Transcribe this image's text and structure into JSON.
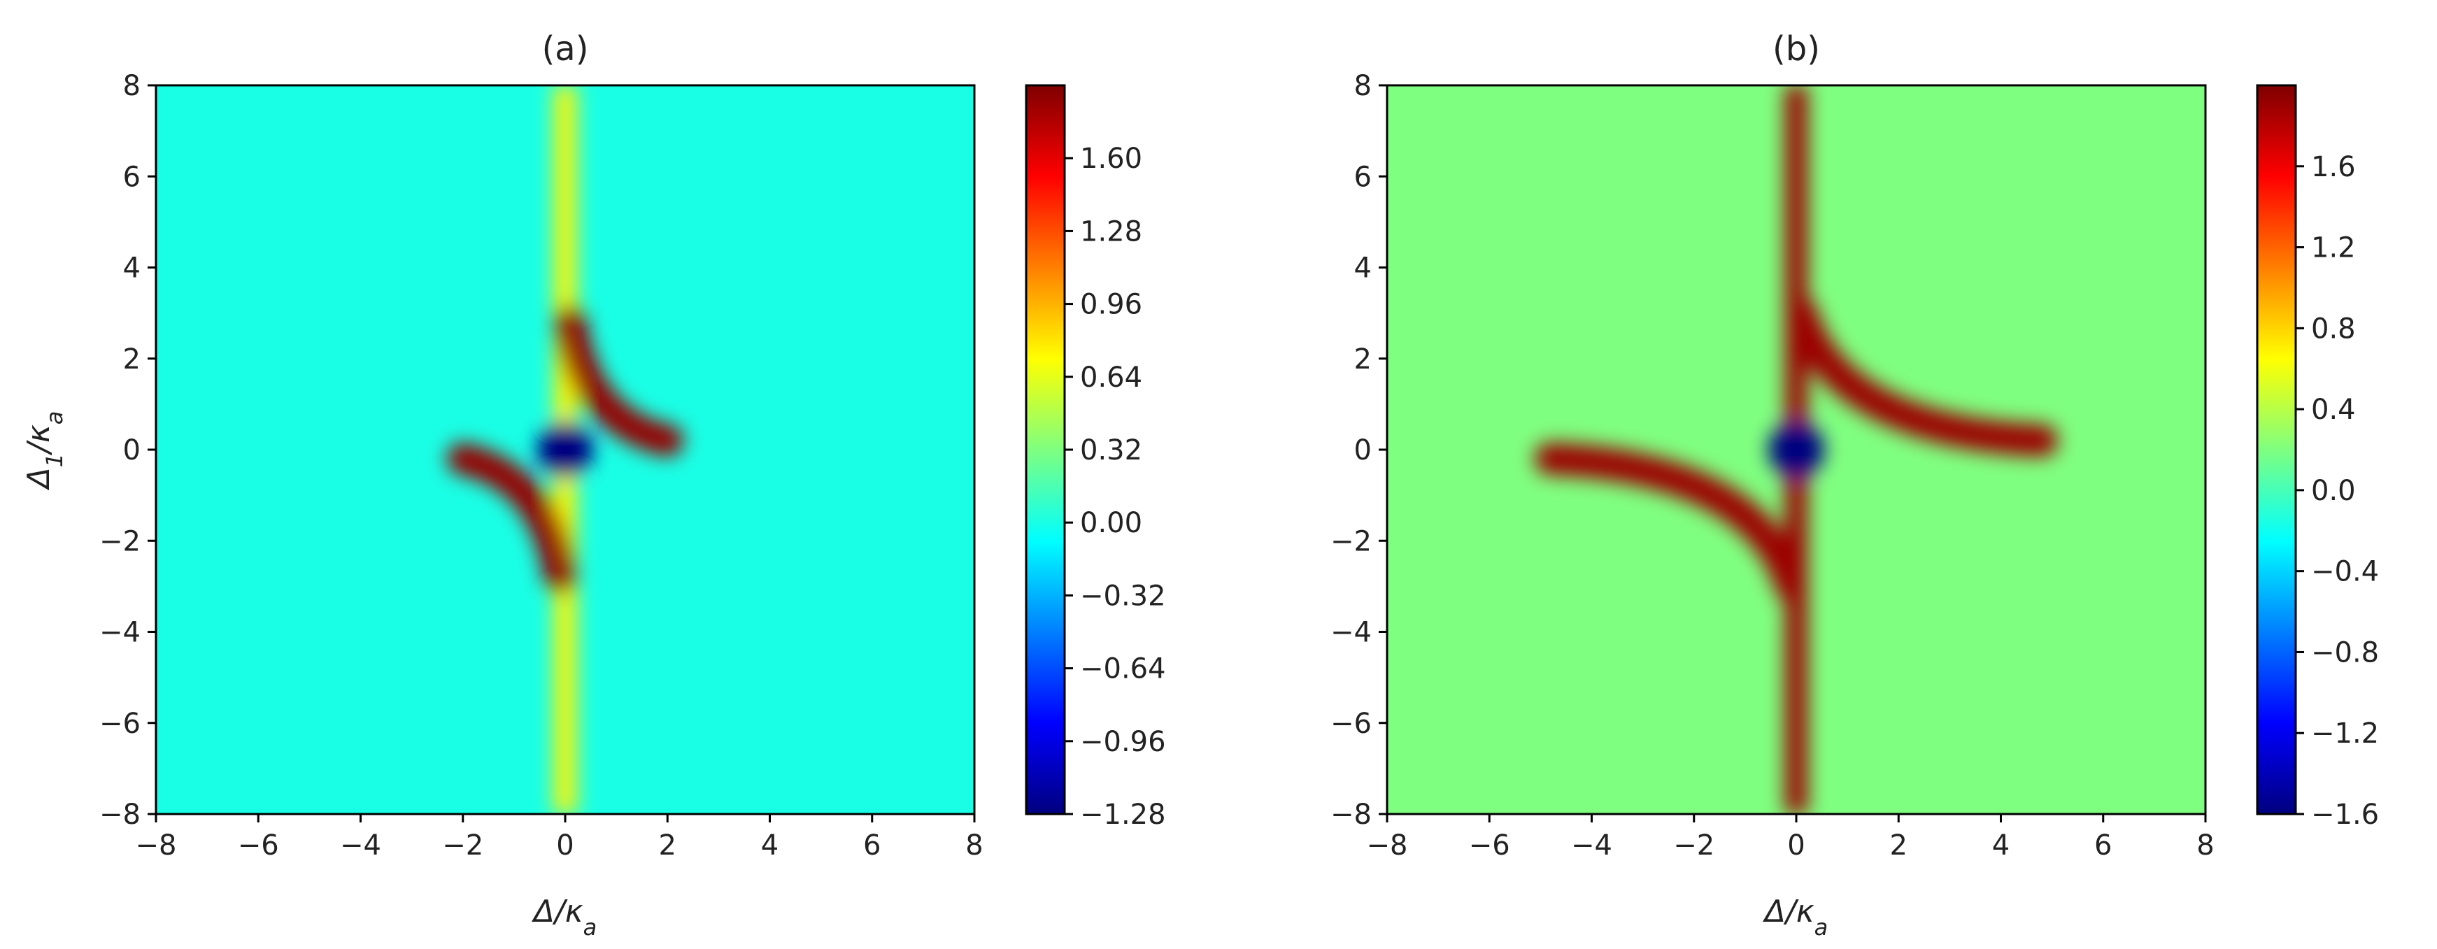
{
  "colormap": [
    "#00007f",
    "#0000ff",
    "#007fff",
    "#00ffff",
    "#7fff7f",
    "#ffff00",
    "#ff7f00",
    "#ff0000",
    "#7f0000"
  ],
  "chart_data": [
    {
      "type": "heatmap",
      "title": "(a)",
      "xlabel": "Δ/κa",
      "ylabel": "Δ1/κa",
      "xlim": [
        -8,
        8
      ],
      "ylim": [
        -8,
        8
      ],
      "xticks": [
        -8,
        -6,
        -4,
        -2,
        0,
        2,
        4,
        6,
        8
      ],
      "yticks": [
        -8,
        -6,
        -4,
        -2,
        0,
        2,
        4,
        6,
        8
      ],
      "xtick_labels": [
        "−8",
        "−6",
        "−4",
        "−2",
        "0",
        "2",
        "4",
        "6",
        "8"
      ],
      "ytick_labels": [
        "−8",
        "−6",
        "−4",
        "−2",
        "0",
        "2",
        "4",
        "6",
        "8"
      ],
      "colorbar": {
        "vmin": -1.28,
        "vmax": 1.92,
        "ticks": [
          1.6,
          1.28,
          0.96,
          0.64,
          0.32,
          0.0,
          -0.32,
          -0.64,
          -0.96,
          -1.28
        ],
        "tick_labels": [
          "1.60",
          "1.28",
          "0.96",
          "0.64",
          "0.32",
          "0.00",
          "−0.32",
          "−0.64",
          "−0.96",
          "−1.28"
        ]
      },
      "background_value": 0.0,
      "features": [
        {
          "kind": "vertical-band",
          "x": 0,
          "y_range": [
            -8,
            8
          ],
          "value": 0.75
        },
        {
          "kind": "arc",
          "from": [
            0.1,
            2.8
          ],
          "via": [
            0.4,
            0.6
          ],
          "to": [
            2.0,
            0.2
          ],
          "value": 1.85
        },
        {
          "kind": "arc",
          "from": [
            -0.1,
            -2.8
          ],
          "via": [
            -0.4,
            -0.6
          ],
          "to": [
            -2.0,
            -0.2
          ],
          "value": 1.85
        },
        {
          "kind": "dip",
          "x": 0,
          "y": 0,
          "value": -1.28
        }
      ]
    },
    {
      "type": "heatmap",
      "title": "(b)",
      "xlabel": "Δ/κa",
      "ylabel": "",
      "xlim": [
        -8,
        8
      ],
      "ylim": [
        -8,
        8
      ],
      "xticks": [
        -8,
        -6,
        -4,
        -2,
        0,
        2,
        4,
        6,
        8
      ],
      "yticks": [
        -8,
        -6,
        -4,
        -2,
        0,
        2,
        4,
        6,
        8
      ],
      "xtick_labels": [
        "−8",
        "−6",
        "−4",
        "−2",
        "0",
        "2",
        "4",
        "6",
        "8"
      ],
      "ytick_labels": [
        "−8",
        "−6",
        "−4",
        "−2",
        "0",
        "2",
        "4",
        "6",
        "8"
      ],
      "colorbar": {
        "vmin": -1.6,
        "vmax": 2.0,
        "ticks": [
          1.6,
          1.2,
          0.8,
          0.4,
          0.0,
          -0.4,
          -0.8,
          -1.2,
          -1.6
        ],
        "tick_labels": [
          "1.6",
          "1.2",
          "0.8",
          "0.4",
          "0.0",
          "−0.4",
          "−0.8",
          "−1.2",
          "−1.6"
        ]
      },
      "background_value": 0.2,
      "features": [
        {
          "kind": "vertical-band",
          "x": 0,
          "y_range": [
            0.5,
            8
          ],
          "value": 1.9
        },
        {
          "kind": "vertical-band",
          "x": 0,
          "y_range": [
            -8,
            -0.5
          ],
          "value": 1.9
        },
        {
          "kind": "arc",
          "from": [
            0.1,
            3.0
          ],
          "via": [
            0.8,
            0.4
          ],
          "to": [
            4.8,
            0.2
          ],
          "value": 1.9
        },
        {
          "kind": "arc",
          "from": [
            -0.1,
            -3.0
          ],
          "via": [
            -0.8,
            -0.4
          ],
          "to": [
            -4.8,
            -0.2
          ],
          "value": 1.9
        },
        {
          "kind": "dip",
          "x": 0,
          "y": 0,
          "value": -1.6
        }
      ]
    }
  ]
}
